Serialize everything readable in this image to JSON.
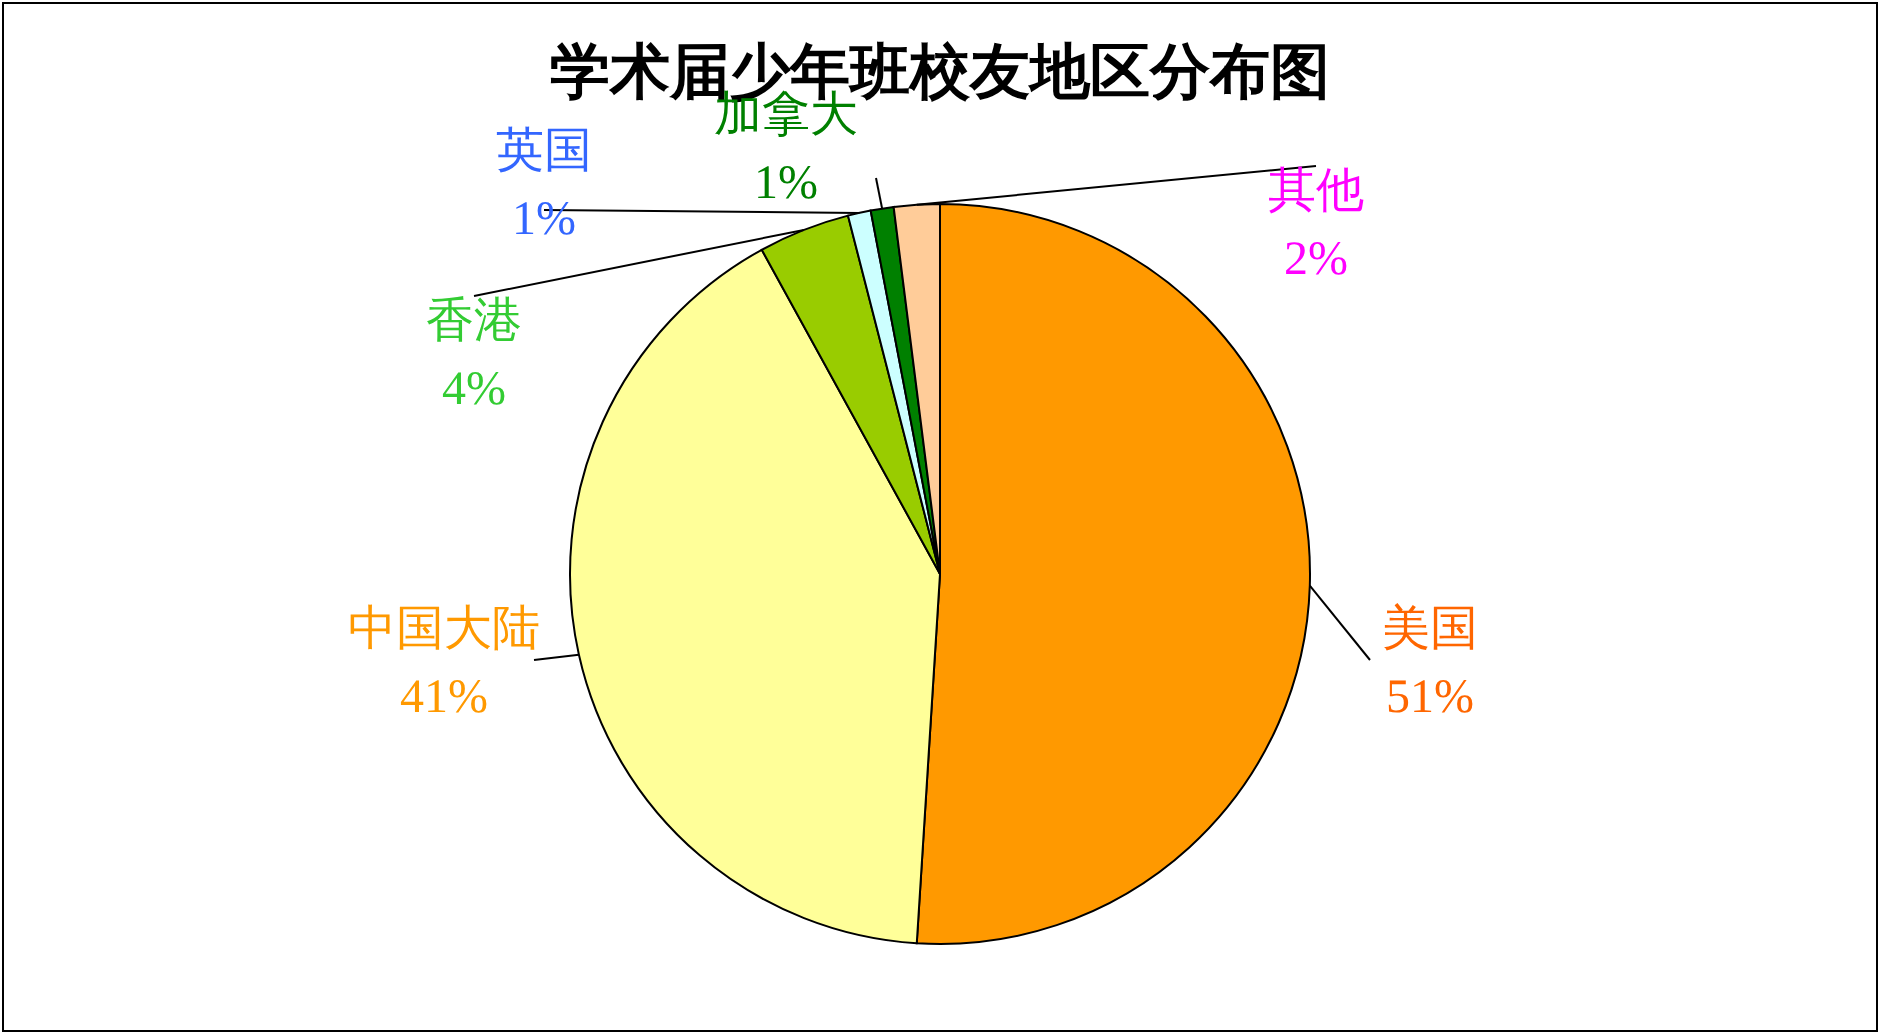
{
  "chart_data": {
    "type": "pie",
    "title": "学术届少年班校友地区分布图",
    "categories": [
      "美国",
      "中国大陆",
      "香港",
      "英国",
      "加拿大",
      "其他"
    ],
    "values": [
      51,
      41,
      4,
      1,
      1,
      2
    ],
    "colors": [
      "#ff9900",
      "#ffff99",
      "#99cc00",
      "#ccffff",
      "#008000",
      "#ffcc99"
    ],
    "value_labels": [
      "51%",
      "41%",
      "4%",
      "1%",
      "1%",
      "2%"
    ],
    "legend": false
  }
}
